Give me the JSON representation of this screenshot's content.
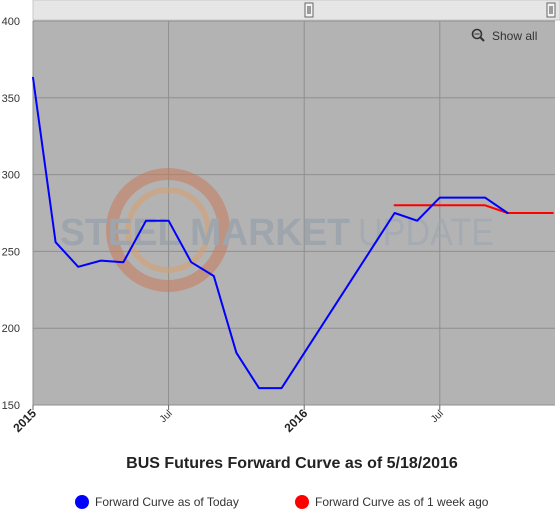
{
  "chart_data": {
    "type": "line",
    "title": "BUS Futures Forward Curve as of 5/18/2016",
    "ylim": [
      150,
      400
    ],
    "yticks": [
      150,
      200,
      250,
      300,
      350,
      400
    ],
    "x_range": [
      "2015-01",
      "2016-12"
    ],
    "x_ticks": [
      {
        "label": "2015",
        "x": "2015-01",
        "major": true
      },
      {
        "label": "Jul",
        "x": "2015-07",
        "major": false
      },
      {
        "label": "2016",
        "x": "2016-01",
        "major": true
      },
      {
        "label": "Jul",
        "x": "2016-07",
        "major": false
      }
    ],
    "grid": true,
    "legend_position": "bottom",
    "series": [
      {
        "name": "Forward Curve as of Today",
        "color": "#0000ff",
        "x": [
          "2015-01",
          "2015-02",
          "2015-03",
          "2015-04",
          "2015-05",
          "2015-06",
          "2015-07",
          "2015-08",
          "2015-09",
          "2015-10",
          "2015-11",
          "2015-12",
          "2016-05",
          "2016-06",
          "2016-07",
          "2016-08",
          "2016-09",
          "2016-10"
        ],
        "values": [
          363,
          256,
          240,
          244,
          243,
          270,
          270,
          243,
          234,
          184,
          161,
          161,
          275,
          270,
          285,
          285,
          285,
          275
        ]
      },
      {
        "name": "Forward Curve as of 1 week ago",
        "color": "#ff0000",
        "x": [
          "2016-05",
          "2016-06",
          "2016-07",
          "2016-08",
          "2016-09",
          "2016-10",
          "2016-11",
          "2016-12"
        ],
        "values": [
          280,
          280,
          280,
          280,
          280,
          275,
          275,
          275
        ]
      }
    ]
  },
  "controls": {
    "show_all_label": "Show all",
    "magnifier_icon": "magnifier-icon"
  },
  "watermark": {
    "word1": "STEEL MARKET",
    "word2": "UPDATE"
  },
  "colors": {
    "plot_background": "#b3b3b3",
    "grid": "#8f8f8f",
    "navigator": "#e6e6e6"
  }
}
